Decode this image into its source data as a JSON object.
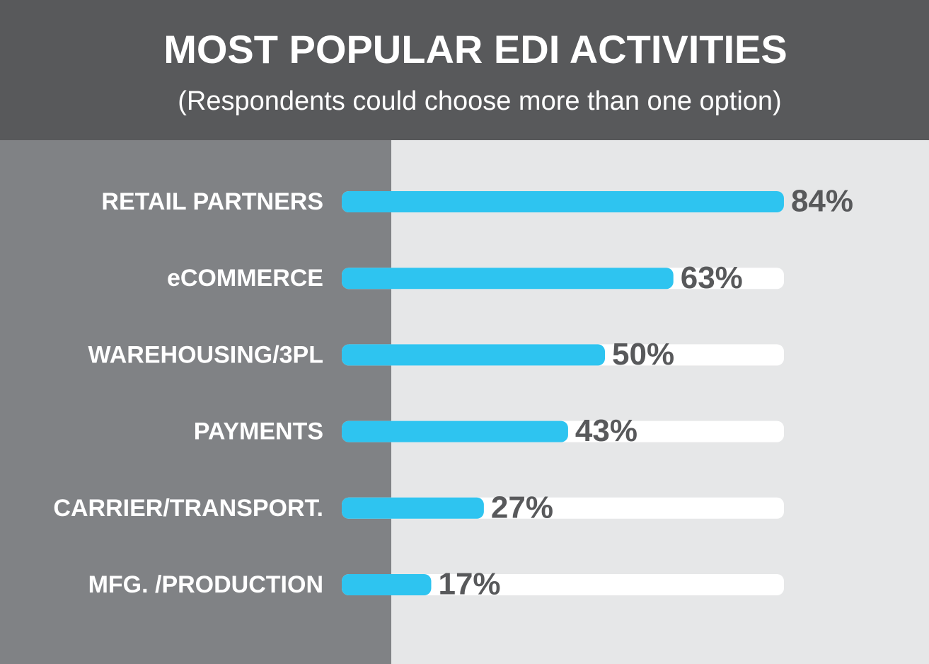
{
  "chart_data": {
    "type": "bar",
    "orientation": "horizontal",
    "title": "MOST POPULAR EDI ACTIVITIES",
    "subtitle": "(Respondents could choose more than one option)",
    "categories": [
      "RETAIL PARTNERS",
      "eCOMMERCE",
      "WAREHOUSING/3PL",
      "PAYMENTS",
      "CARRIER/TRANSPORT.",
      "MFG. /PRODUCTION"
    ],
    "values": [
      84,
      63,
      50,
      43,
      27,
      17
    ],
    "value_labels": [
      "84%",
      "63%",
      "50%",
      "43%",
      "27%",
      "17%"
    ],
    "color": "#2ec4f0"
  }
}
